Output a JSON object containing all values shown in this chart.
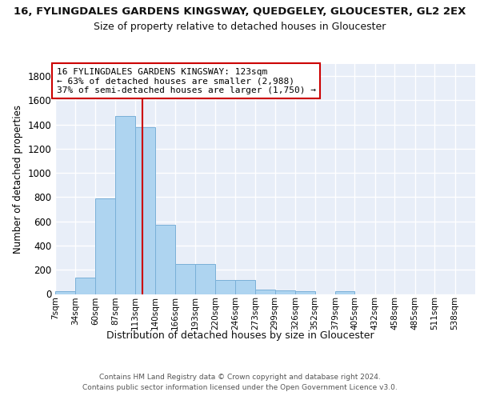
{
  "title": "16, FYLINGDALES GARDENS KINGSWAY, QUEDGELEY, GLOUCESTER, GL2 2EX",
  "subtitle": "Size of property relative to detached houses in Gloucester",
  "xlabel": "Distribution of detached houses by size in Gloucester",
  "ylabel": "Number of detached properties",
  "bar_color": "#aed4f0",
  "bar_edge_color": "#7ab0d8",
  "background_color": "#e8eef8",
  "grid_color": "#ffffff",
  "bin_edges": [
    7,
    34,
    60,
    87,
    113,
    140,
    166,
    193,
    220,
    246,
    273,
    299,
    326,
    352,
    379,
    405,
    432,
    458,
    485,
    511,
    538
  ],
  "bar_heights": [
    20,
    135,
    790,
    1470,
    1380,
    570,
    250,
    250,
    115,
    115,
    35,
    30,
    20,
    0,
    20,
    0,
    0,
    0,
    0,
    0
  ],
  "tick_labels": [
    "7sqm",
    "34sqm",
    "60sqm",
    "87sqm",
    "113sqm",
    "140sqm",
    "166sqm",
    "193sqm",
    "220sqm",
    "246sqm",
    "273sqm",
    "299sqm",
    "326sqm",
    "352sqm",
    "379sqm",
    "405sqm",
    "432sqm",
    "458sqm",
    "485sqm",
    "511sqm",
    "538sqm"
  ],
  "property_size": 123,
  "red_line_color": "#cc0000",
  "annotation_text": "16 FYLINGDALES GARDENS KINGSWAY: 123sqm\n← 63% of detached houses are smaller (2,988)\n37% of semi-detached houses are larger (1,750) →",
  "annotation_box_color": "#ffffff",
  "annotation_border_color": "#cc0000",
  "ylim": [
    0,
    1900
  ],
  "yticks": [
    0,
    200,
    400,
    600,
    800,
    1000,
    1200,
    1400,
    1600,
    1800
  ],
  "footer_line1": "Contains HM Land Registry data © Crown copyright and database right 2024.",
  "footer_line2": "Contains public sector information licensed under the Open Government Licence v3.0."
}
